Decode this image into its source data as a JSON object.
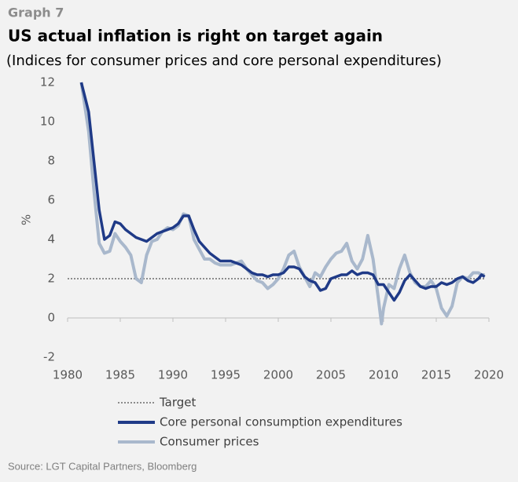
{
  "header": "Graph 7",
  "chart_data": {
    "type": "line",
    "title": "US actual inflation is right on target again",
    "subtitle": "(Indices for consumer prices and core personal expenditures)",
    "y_label": "%",
    "source": "Source: LGT Capital Partners, Bloomberg",
    "xlim": [
      1980,
      2020
    ],
    "xticks": [
      1980,
      1985,
      1990,
      1995,
      2000,
      2005,
      2010,
      2015,
      2020
    ],
    "ylim": [
      -2,
      12
    ],
    "yticks": [
      -2,
      0,
      2,
      4,
      6,
      8,
      10,
      12
    ],
    "target": {
      "name": "Target",
      "value": 2,
      "color": "#8c8c8c"
    },
    "x": [
      1981.3,
      1982,
      1982.5,
      1983,
      1983.5,
      1984,
      1984.5,
      1985,
      1985.5,
      1986,
      1986.5,
      1987,
      1987.5,
      1988,
      1988.5,
      1989,
      1989.5,
      1990,
      1990.5,
      1991,
      1991.5,
      1992,
      1992.5,
      1993,
      1993.5,
      1994,
      1994.5,
      1995,
      1995.5,
      1996,
      1996.5,
      1997,
      1997.5,
      1998,
      1998.5,
      1999,
      1999.5,
      2000,
      2000.5,
      2001,
      2001.5,
      2002,
      2002.5,
      2003,
      2003.5,
      2004,
      2004.5,
      2005,
      2005.5,
      2006,
      2006.5,
      2007,
      2007.5,
      2008,
      2008.5,
      2009,
      2009.5,
      2009.8,
      2010,
      2010.5,
      2011,
      2011.5,
      2012,
      2012.5,
      2013,
      2013.5,
      2014,
      2014.5,
      2015,
      2015.5,
      2016,
      2016.5,
      2017,
      2017.5,
      2018,
      2018.5,
      2019,
      2019.3,
      2019.6
    ],
    "series": [
      {
        "name": "Consumer prices",
        "color": "#a9b8cc",
        "values": [
          12,
          9.5,
          6.5,
          3.8,
          3.3,
          3.4,
          4.3,
          3.9,
          3.6,
          3.2,
          2.0,
          1.8,
          3.2,
          3.9,
          4.0,
          4.4,
          4.6,
          4.5,
          4.7,
          5.3,
          5.2,
          4.0,
          3.5,
          3.0,
          3.0,
          2.8,
          2.7,
          2.7,
          2.7,
          2.8,
          2.9,
          2.5,
          2.2,
          1.9,
          1.8,
          1.5,
          1.7,
          2.0,
          2.5,
          3.2,
          3.4,
          2.6,
          2.1,
          1.6,
          2.3,
          2.1,
          2.6,
          3.0,
          3.3,
          3.4,
          3.8,
          2.9,
          2.5,
          3.0,
          4.2,
          3.0,
          1.0,
          -0.3,
          0.5,
          1.7,
          1.5,
          2.5,
          3.2,
          2.3,
          1.8,
          1.6,
          1.6,
          1.9,
          1.5,
          0.5,
          0.1,
          0.6,
          1.8,
          2.1,
          2.0,
          2.3,
          2.3,
          2.2,
          2.2
        ]
      },
      {
        "name": "Core personal consumption expenditures",
        "color": "#1f3a87",
        "values": [
          12,
          10.5,
          8,
          5.5,
          4.0,
          4.2,
          4.9,
          4.8,
          4.5,
          4.3,
          4.1,
          4.0,
          3.9,
          4.1,
          4.3,
          4.4,
          4.5,
          4.6,
          4.8,
          5.2,
          5.2,
          4.5,
          3.9,
          3.6,
          3.3,
          3.1,
          2.9,
          2.9,
          2.9,
          2.8,
          2.7,
          2.5,
          2.3,
          2.2,
          2.2,
          2.1,
          2.2,
          2.2,
          2.3,
          2.6,
          2.6,
          2.5,
          2.1,
          1.9,
          1.8,
          1.4,
          1.5,
          2.0,
          2.1,
          2.2,
          2.2,
          2.4,
          2.2,
          2.3,
          2.3,
          2.2,
          1.7,
          1.7,
          1.7,
          1.3,
          0.9,
          1.3,
          1.9,
          2.2,
          1.9,
          1.6,
          1.5,
          1.6,
          1.6,
          1.8,
          1.7,
          1.8,
          2.0,
          2.1,
          1.9,
          1.8,
          2.0,
          2.2,
          2.1
        ]
      }
    ]
  }
}
